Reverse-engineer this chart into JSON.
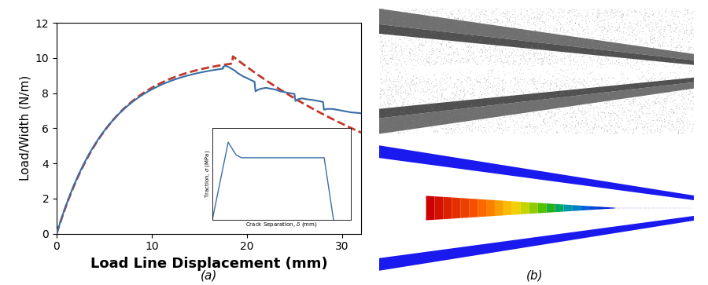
{
  "main_plot": {
    "xlim": [
      0,
      32
    ],
    "ylim": [
      0,
      12
    ],
    "xlabel": "Load Line Displacement (mm)",
    "ylabel": "Load/Width (N/m)",
    "xlabel_fontsize": 13,
    "ylabel_fontsize": 11,
    "tick_fontsize": 10,
    "yticks": [
      0,
      2,
      4,
      6,
      8,
      10,
      12
    ],
    "xticks": [
      0,
      10,
      20,
      30
    ],
    "bg_color": "#ffffff"
  },
  "solid_line_color": "#3a6ea5",
  "dashed_line_color": "#c0392b",
  "inset_line_color": "#3a6ea5",
  "label_a": "(a)",
  "label_b": "(b)",
  "photo_bg": "#000000",
  "fem_bg": "#ffffff"
}
